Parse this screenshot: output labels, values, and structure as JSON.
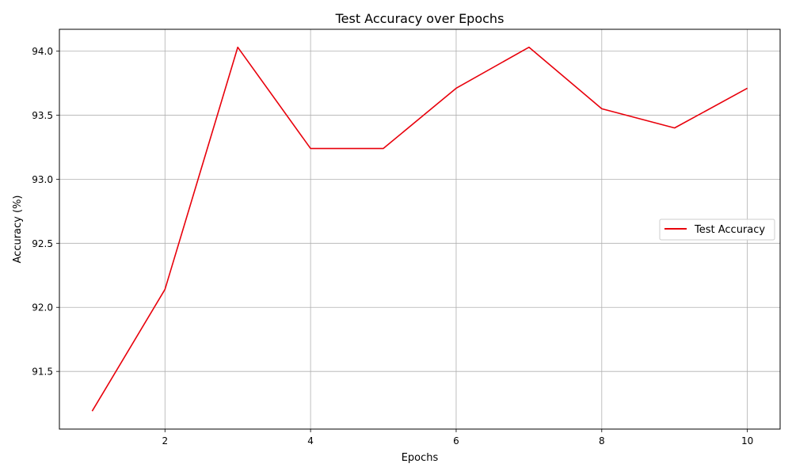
{
  "chart_data": {
    "type": "line",
    "title": "Test Accuracy over Epochs",
    "xlabel": "Epochs",
    "ylabel": "Accuracy (%)",
    "x": [
      1,
      2,
      3,
      4,
      5,
      6,
      7,
      8,
      9,
      10
    ],
    "series": [
      {
        "name": "Test Accuracy",
        "color": "#e8000b",
        "values": [
          91.19,
          92.14,
          94.03,
          93.24,
          93.24,
          93.71,
          94.03,
          93.55,
          93.4,
          93.71
        ]
      }
    ],
    "xlim": [
      0.55,
      10.45
    ],
    "ylim": [
      91.05,
      94.17
    ],
    "xticks": [
      2,
      4,
      6,
      8,
      10
    ],
    "xtick_labels": [
      "2",
      "4",
      "6",
      "8",
      "10"
    ],
    "yticks": [
      91.5,
      92.0,
      92.5,
      93.0,
      93.5,
      94.0
    ],
    "ytick_labels": [
      "91.5",
      "92.0",
      "92.5",
      "93.0",
      "93.5",
      "94.0"
    ],
    "grid": true,
    "legend_position": "center-right"
  }
}
